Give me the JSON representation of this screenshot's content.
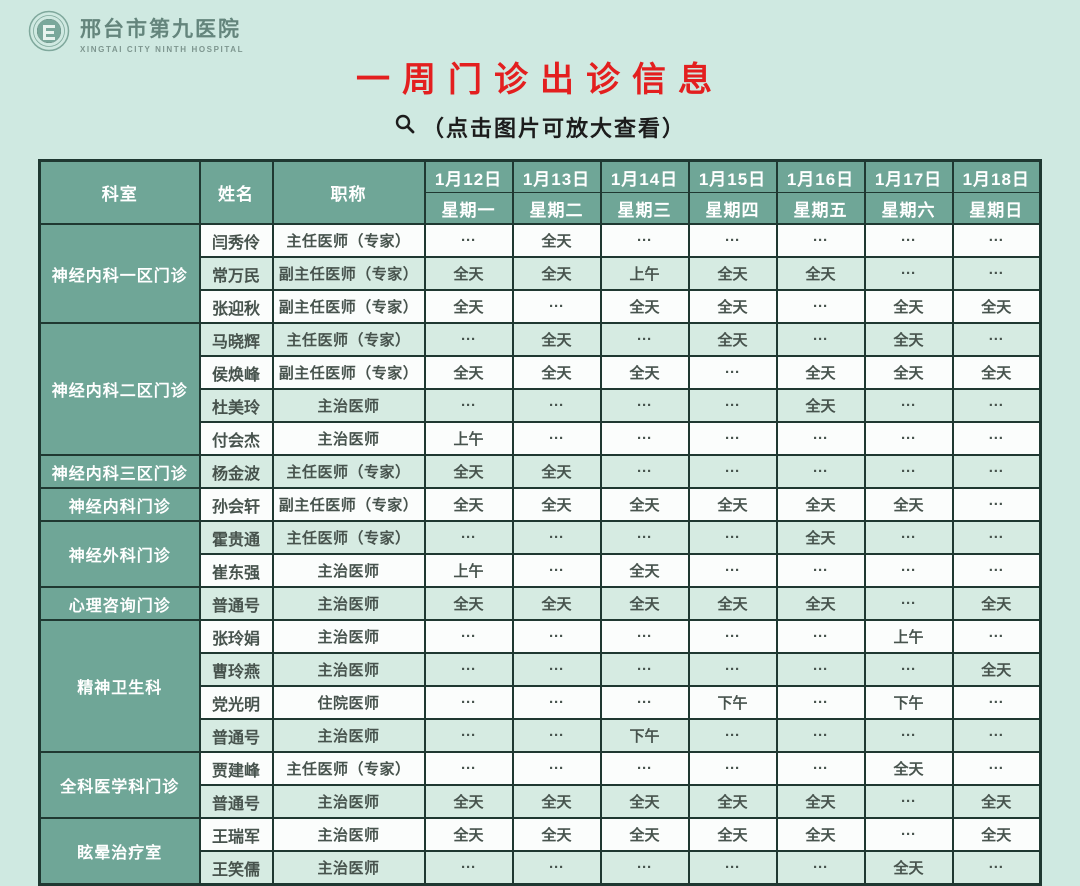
{
  "brand": {
    "hospital_name_zh": "邢台市第九医院",
    "hospital_name_en": "XINGTAI CITY NINTH HOSPITAL"
  },
  "header": {
    "title": "一周门诊出诊信息",
    "subtitle": "（点击图片可放大查看）"
  },
  "icons": {
    "logo": "hospital-emblem",
    "magnifier": "magnifier-icon"
  },
  "colors": {
    "page_bg": "#cfe9e1",
    "title_red": "#e31f1f",
    "header_teal": "#6fa697",
    "row_white": "#fbfdfc",
    "row_green": "#d6ebe2",
    "border_dark": "#1f3831"
  },
  "table": {
    "columns": {
      "department": "科室",
      "name": "姓名",
      "title": "职称"
    },
    "days": [
      {
        "date": "1月12日",
        "weekday": "星期一"
      },
      {
        "date": "1月13日",
        "weekday": "星期二"
      },
      {
        "date": "1月14日",
        "weekday": "星期三"
      },
      {
        "date": "1月15日",
        "weekday": "星期四"
      },
      {
        "date": "1月16日",
        "weekday": "星期五"
      },
      {
        "date": "1月17日",
        "weekday": "星期六"
      },
      {
        "date": "1月18日",
        "weekday": "星期日"
      }
    ],
    "groups": [
      {
        "department": "神经内科一区门诊",
        "rows": [
          {
            "name": "闫秀伶",
            "title": "主任医师（专家）",
            "schedule": [
              "···",
              "全天",
              "···",
              "···",
              "···",
              "···",
              "···"
            ]
          },
          {
            "name": "常万民",
            "title": "副主任医师（专家）",
            "schedule": [
              "全天",
              "全天",
              "上午",
              "全天",
              "全天",
              "···",
              "···"
            ]
          },
          {
            "name": "张迎秋",
            "title": "副主任医师（专家）",
            "schedule": [
              "全天",
              "···",
              "全天",
              "全天",
              "···",
              "全天",
              "全天"
            ]
          }
        ]
      },
      {
        "department": "神经内科二区门诊",
        "rows": [
          {
            "name": "马晓辉",
            "title": "主任医师（专家）",
            "schedule": [
              "···",
              "全天",
              "···",
              "全天",
              "···",
              "全天",
              "···"
            ]
          },
          {
            "name": "侯焕峰",
            "title": "副主任医师（专家）",
            "schedule": [
              "全天",
              "全天",
              "全天",
              "···",
              "全天",
              "全天",
              "全天"
            ]
          },
          {
            "name": "杜美玲",
            "title": "主治医师",
            "schedule": [
              "···",
              "···",
              "···",
              "···",
              "全天",
              "···",
              "···"
            ]
          },
          {
            "name": "付会杰",
            "title": "主治医师",
            "schedule": [
              "上午",
              "···",
              "···",
              "···",
              "···",
              "···",
              "···"
            ]
          }
        ]
      },
      {
        "department": "神经内科三区门诊",
        "rows": [
          {
            "name": "杨金波",
            "title": "主任医师（专家）",
            "schedule": [
              "全天",
              "全天",
              "···",
              "···",
              "···",
              "···",
              "···"
            ]
          }
        ]
      },
      {
        "department": "神经内科门诊",
        "rows": [
          {
            "name": "孙会轩",
            "title": "副主任医师（专家）",
            "schedule": [
              "全天",
              "全天",
              "全天",
              "全天",
              "全天",
              "全天",
              "···"
            ]
          }
        ]
      },
      {
        "department": "神经外科门诊",
        "rows": [
          {
            "name": "霍贵通",
            "title": "主任医师（专家）",
            "schedule": [
              "···",
              "···",
              "···",
              "···",
              "全天",
              "···",
              "···"
            ]
          },
          {
            "name": "崔东强",
            "title": "主治医师",
            "schedule": [
              "上午",
              "···",
              "全天",
              "···",
              "···",
              "···",
              "···"
            ]
          }
        ]
      },
      {
        "department": "心理咨询门诊",
        "rows": [
          {
            "name": "普通号",
            "title": "主治医师",
            "schedule": [
              "全天",
              "全天",
              "全天",
              "全天",
              "全天",
              "···",
              "全天"
            ]
          }
        ]
      },
      {
        "department": "精神卫生科",
        "rows": [
          {
            "name": "张玲娟",
            "title": "主治医师",
            "schedule": [
              "···",
              "···",
              "···",
              "···",
              "···",
              "上午",
              "···"
            ]
          },
          {
            "name": "曹玲燕",
            "title": "主治医师",
            "schedule": [
              "···",
              "···",
              "···",
              "···",
              "···",
              "···",
              "全天"
            ]
          },
          {
            "name": "党光明",
            "title": "住院医师",
            "schedule": [
              "···",
              "···",
              "···",
              "下午",
              "···",
              "下午",
              "···"
            ]
          },
          {
            "name": "普通号",
            "title": "主治医师",
            "schedule": [
              "···",
              "···",
              "下午",
              "···",
              "···",
              "···",
              "···"
            ]
          }
        ]
      },
      {
        "department": "全科医学科门诊",
        "rows": [
          {
            "name": "贾建峰",
            "title": "主任医师（专家）",
            "schedule": [
              "···",
              "···",
              "···",
              "···",
              "···",
              "全天",
              "···"
            ]
          },
          {
            "name": "普通号",
            "title": "主治医师",
            "schedule": [
              "全天",
              "全天",
              "全天",
              "全天",
              "全天",
              "···",
              "全天"
            ]
          }
        ]
      },
      {
        "department": "眩晕治疗室",
        "rows": [
          {
            "name": "王瑞军",
            "title": "主治医师",
            "schedule": [
              "全天",
              "全天",
              "全天",
              "全天",
              "全天",
              "···",
              "全天"
            ]
          },
          {
            "name": "王笑儒",
            "title": "主治医师",
            "schedule": [
              "···",
              "···",
              "···",
              "···",
              "···",
              "全天",
              "···"
            ]
          }
        ]
      }
    ]
  }
}
